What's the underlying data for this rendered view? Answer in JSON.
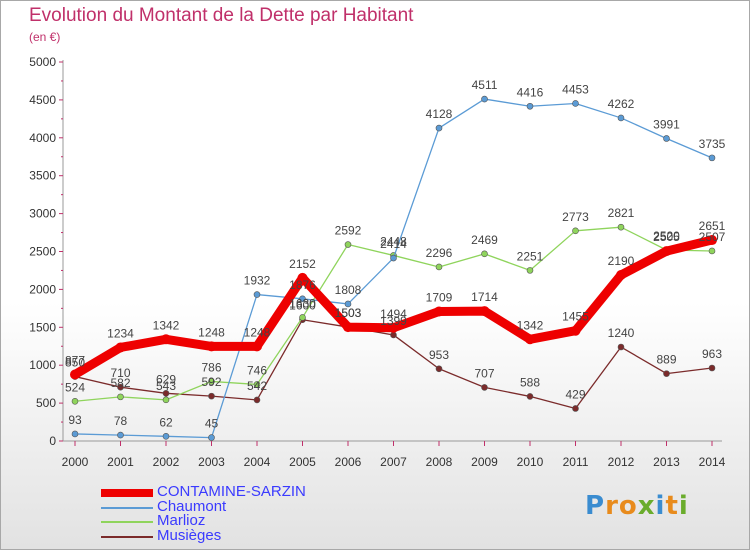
{
  "title": "Evolution du Montant de la Dette par Habitant",
  "subtitle": "(en €)",
  "logo_text": "Proxiti",
  "chart_data": {
    "type": "line",
    "title": "Evolution du Montant de la Dette par Habitant",
    "ylabel": "(en €)",
    "x": [
      "2000",
      "2001",
      "2002",
      "2003",
      "2004",
      "2005",
      "2006",
      "2007",
      "2008",
      "2009",
      "2010",
      "2011",
      "2012",
      "2013",
      "2014"
    ],
    "ylim": [
      0,
      5000
    ],
    "yticks": [
      0,
      500,
      1000,
      1500,
      2000,
      2500,
      3000,
      3500,
      4000,
      4500,
      5000
    ],
    "grid": false,
    "legend_position": "bottom-left",
    "series": [
      {
        "name": "CONTAMINE-SARZIN",
        "color": "#ee0000",
        "values": [
          877,
          1234,
          1342,
          1248,
          1248,
          2152,
          1503,
          1494,
          1709,
          1714,
          1342,
          1455,
          2190,
          2505,
          2651
        ]
      },
      {
        "name": "Chaumont",
        "color": "#5b9bd5",
        "values": [
          93,
          78,
          62,
          45,
          1932,
          1876,
          1808,
          2414,
          4128,
          4511,
          4416,
          4453,
          4262,
          3991,
          3735
        ]
      },
      {
        "name": "Marlioz",
        "color": "#8fd45c",
        "values": [
          524,
          582,
          543,
          786,
          746,
          1630,
          2592,
          2448,
          2296,
          2469,
          2251,
          2773,
          2821,
          2520,
          2507
        ]
      },
      {
        "name": "Musièges",
        "color": "#7b2b2b",
        "values": [
          850,
          710,
          629,
          592,
          542,
          1600,
          1503,
          1399,
          953,
          707,
          588,
          429,
          1240,
          889,
          963
        ]
      }
    ]
  }
}
